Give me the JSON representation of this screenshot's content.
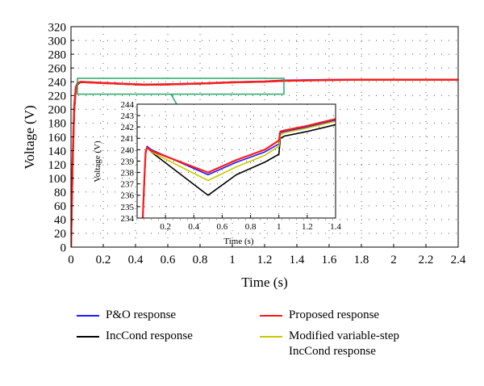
{
  "chart_data": [
    {
      "id": "main",
      "type": "line",
      "title": "",
      "xlabel": "Time (s)",
      "ylabel": "Voltage (V)",
      "xlim": [
        0,
        2.4
      ],
      "ylim": [
        0,
        320
      ],
      "x_ticks": [
        "0",
        "0.2",
        "0.4",
        "0.6",
        "0.8",
        "1",
        "1.2",
        "1.4",
        "1.6",
        "1.8",
        "2",
        "2.2",
        "2.4"
      ],
      "y_ticks": [
        "0",
        "20",
        "40",
        "60",
        "80",
        "100",
        "120",
        "140",
        "160",
        "180",
        "200",
        "220",
        "240",
        "260",
        "280",
        "300",
        "320"
      ],
      "grid": "dotted",
      "zoom_box": {
        "x": [
          0.04,
          1.32
        ],
        "y": [
          222,
          245
        ]
      },
      "series": [
        {
          "name": "P&O response",
          "color": "#1a1aff",
          "x": [
            0,
            0.01,
            0.02,
            0.03,
            0.04,
            0.06,
            0.2,
            0.45,
            0.6,
            0.85,
            1.0,
            1.2,
            1.32,
            1.6,
            1.8,
            2.4
          ],
          "y": [
            0,
            120,
            200,
            230,
            237,
            240,
            238.5,
            236,
            236.5,
            238,
            239.5,
            240.5,
            242,
            243,
            243,
            243
          ]
        },
        {
          "name": "IncCond response",
          "color": "#000000",
          "x": [
            0,
            0.01,
            0.02,
            0.03,
            0.04,
            0.06,
            0.2,
            0.45,
            0.6,
            0.85,
            1.0,
            1.2,
            1.32,
            1.6,
            1.8,
            2.4
          ],
          "y": [
            0,
            115,
            195,
            228,
            236,
            239.5,
            238,
            235.5,
            236,
            237.5,
            239,
            240,
            241.5,
            242.5,
            243,
            243
          ]
        },
        {
          "name": "Proposed response",
          "color": "#ff1a1a",
          "x": [
            0,
            0.01,
            0.02,
            0.03,
            0.04,
            0.06,
            0.2,
            0.45,
            0.6,
            0.85,
            1.0,
            1.2,
            1.32,
            1.6,
            1.8,
            2.4
          ],
          "y": [
            0,
            125,
            205,
            232,
            238,
            240,
            238.2,
            236,
            236.3,
            237.8,
            239.2,
            240.2,
            241.5,
            242.5,
            243,
            243
          ]
        },
        {
          "name": "Modified variable-step IncCond response",
          "color": "#c8c800",
          "x": [
            0,
            0.01,
            0.02,
            0.03,
            0.04,
            0.06,
            0.2,
            0.45,
            0.6,
            0.85,
            1.0,
            1.2,
            1.32,
            1.6,
            1.8,
            2.4
          ],
          "y": [
            0,
            118,
            200,
            230,
            237,
            239.8,
            238,
            235.8,
            236.2,
            237.6,
            239,
            240,
            241.2,
            242.3,
            243,
            243
          ]
        }
      ]
    },
    {
      "id": "inset",
      "type": "line",
      "title": "",
      "xlabel": "Time (s)",
      "ylabel": "Voltage (V)",
      "xlim": [
        0,
        1.4
      ],
      "ylim": [
        234,
        244
      ],
      "x_ticks": [
        "0.2",
        "0.4",
        "0.6",
        "0.8",
        "1",
        "1.2",
        "1.4"
      ],
      "y_ticks": [
        "234",
        "235",
        "236",
        "237",
        "238",
        "239",
        "240",
        "241",
        "242",
        "243",
        "244"
      ],
      "grid": "dotted",
      "series": [
        {
          "name": "P&O response",
          "color": "#1a1aff",
          "x": [
            0.04,
            0.05,
            0.06,
            0.07,
            0.1,
            0.5,
            0.7,
            0.9,
            1.0,
            1.01,
            1.04,
            1.2,
            1.4
          ],
          "y": [
            234,
            237,
            239.8,
            240.3,
            240.0,
            237.8,
            238.9,
            239.8,
            240.5,
            241.5,
            241.6,
            242.0,
            242.6
          ]
        },
        {
          "name": "IncCond response",
          "color": "#000000",
          "x": [
            0.04,
            0.05,
            0.06,
            0.07,
            0.1,
            0.5,
            0.7,
            0.9,
            1.0,
            1.01,
            1.04,
            1.2,
            1.4
          ],
          "y": [
            234,
            236.8,
            239.6,
            240.2,
            239.8,
            236.0,
            237.8,
            238.9,
            239.6,
            241.0,
            241.2,
            241.6,
            242.2
          ]
        },
        {
          "name": "Proposed response",
          "color": "#ff1a1a",
          "x": [
            0.04,
            0.05,
            0.06,
            0.07,
            0.1,
            0.5,
            0.7,
            0.9,
            1.0,
            1.01,
            1.04,
            1.2,
            1.4
          ],
          "y": [
            234,
            237.2,
            239.8,
            240.2,
            239.9,
            238.0,
            239.1,
            240.0,
            240.8,
            241.6,
            241.7,
            242.1,
            242.7
          ]
        },
        {
          "name": "Modified variable-step IncCond response",
          "color": "#c8c800",
          "x": [
            0.04,
            0.05,
            0.06,
            0.07,
            0.1,
            0.5,
            0.7,
            0.9,
            1.0,
            1.01,
            1.04,
            1.2,
            1.4
          ],
          "y": [
            234,
            237.0,
            239.7,
            240.2,
            239.8,
            237.3,
            238.5,
            239.5,
            240.3,
            241.3,
            241.5,
            241.9,
            242.5
          ]
        }
      ]
    }
  ],
  "legend": {
    "placement": "bottom",
    "items": [
      {
        "label": "P&O response",
        "color": "#1a1aff"
      },
      {
        "label": "Proposed response",
        "color": "#ff1a1a"
      },
      {
        "label": "IncCond response",
        "color": "#000000"
      },
      {
        "label": "Modified variable-step",
        "label2": "IncCond response",
        "color": "#c8c800"
      }
    ]
  }
}
